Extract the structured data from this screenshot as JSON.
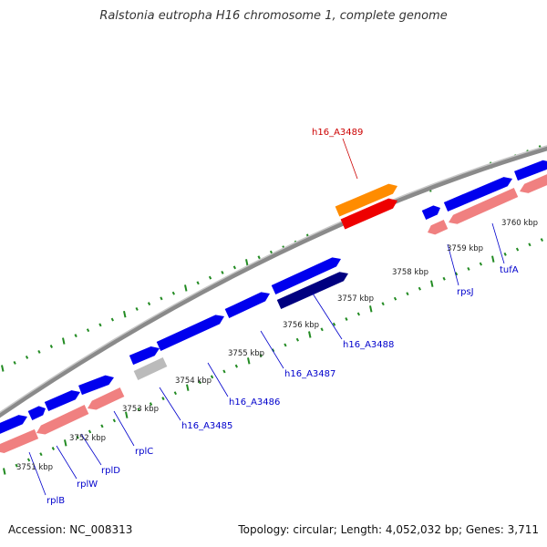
{
  "title": "Ralstonia eutropha H16 chromosome 1, complete genome",
  "accession": "Accession: NC_008313",
  "summary": "Topology: circular; Length: 4,052,032 bp; Genes: 3,711",
  "colors": {
    "backbone": "#888888",
    "forward_gene": "#0000ee",
    "forward_gene_dark": "#000080",
    "reverse_gene": "#f08080",
    "pseudo_gene": "#bbbbbb",
    "highlight_forward": "#ff8c00",
    "highlight_reverse": "#ee0000",
    "tick": "#228b22",
    "gene_label": "#0000cc",
    "highlight_label": "#cc0000"
  },
  "kbp_labels": [
    "3751 kbp",
    "3752 kbp",
    "3753 kbp",
    "3754 kbp",
    "3755 kbp",
    "3756 kbp",
    "3757 kbp",
    "3758 kbp",
    "3759 kbp",
    "3760 kbp"
  ],
  "gene_labels": [
    "rplB",
    "rplW",
    "rplD",
    "rplC",
    "h16_A3485",
    "h16_A3486",
    "h16_A3487",
    "h16_A3488",
    "rpsJ",
    "tufA"
  ],
  "highlight_gene": "h16_A3489"
}
